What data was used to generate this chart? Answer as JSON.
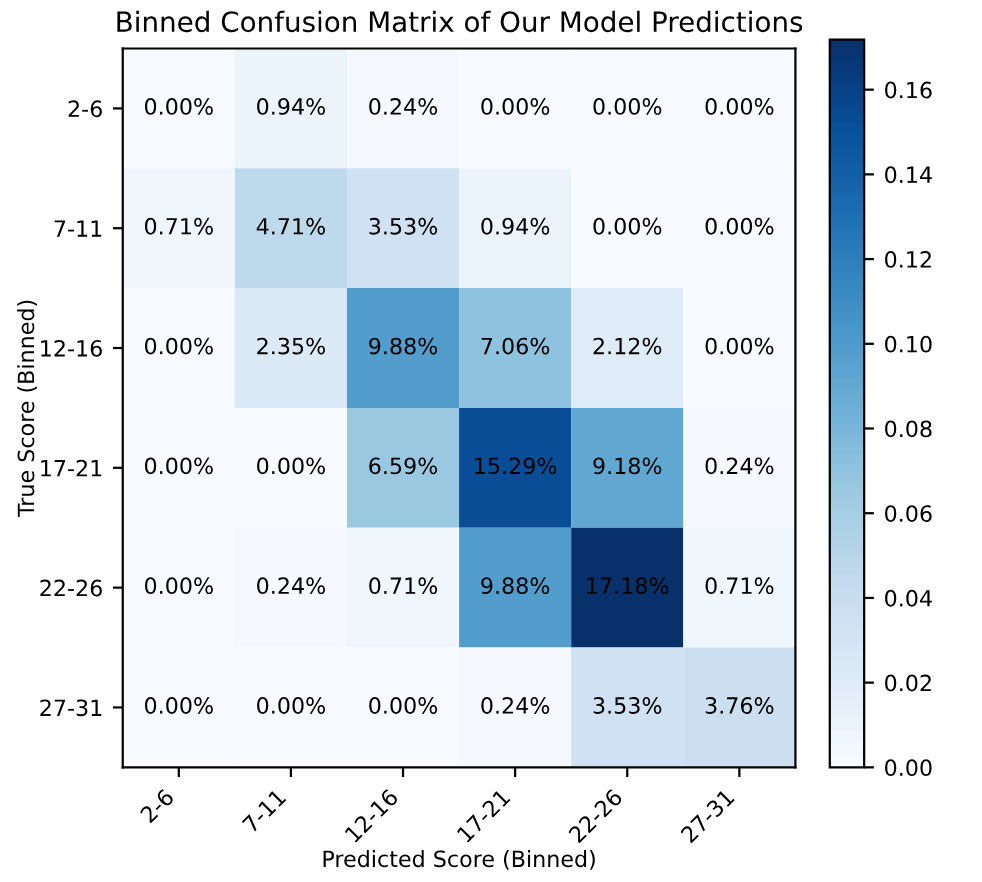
{
  "chart_data": {
    "type": "heatmap",
    "title": "Binned Confusion Matrix of Our Model Predictions",
    "xlabel": "Predicted Score (Binned)",
    "ylabel": "True Score (Binned)",
    "categories": [
      "2-6",
      "7-11",
      "12-16",
      "17-21",
      "22-26",
      "27-31"
    ],
    "y_categories": [
      "2-6",
      "7-11",
      "12-16",
      "17-21",
      "22-26",
      "27-31"
    ],
    "cells": [
      [
        0.0,
        0.0094,
        0.0024,
        0.0,
        0.0,
        0.0
      ],
      [
        0.0071,
        0.0471,
        0.0353,
        0.0094,
        0.0,
        0.0
      ],
      [
        0.0,
        0.0235,
        0.0988,
        0.0706,
        0.0212,
        0.0
      ],
      [
        0.0,
        0.0,
        0.0659,
        0.1529,
        0.0918,
        0.0024
      ],
      [
        0.0,
        0.0024,
        0.0071,
        0.0988,
        0.1718,
        0.0071
      ],
      [
        0.0,
        0.0,
        0.0,
        0.0024,
        0.0353,
        0.0376
      ]
    ],
    "cell_labels": [
      [
        "0.00%",
        "0.94%",
        "0.24%",
        "0.00%",
        "0.00%",
        "0.00%"
      ],
      [
        "0.71%",
        "4.71%",
        "3.53%",
        "0.94%",
        "0.00%",
        "0.00%"
      ],
      [
        "0.00%",
        "2.35%",
        "9.88%",
        "7.06%",
        "2.12%",
        "0.00%"
      ],
      [
        "0.00%",
        "0.00%",
        "6.59%",
        "15.29%",
        "9.18%",
        "0.24%"
      ],
      [
        "0.00%",
        "0.24%",
        "0.71%",
        "9.88%",
        "17.18%",
        "0.71%"
      ],
      [
        "0.00%",
        "0.00%",
        "0.00%",
        "0.24%",
        "3.53%",
        "3.76%"
      ]
    ],
    "clim": [
      0,
      0.1718
    ],
    "cticks": [
      {
        "value": 0,
        "label": "0.00"
      },
      {
        "value": 0.02,
        "label": "0.02"
      },
      {
        "value": 0.04,
        "label": "0.04"
      },
      {
        "value": 0.06,
        "label": "0.06"
      },
      {
        "value": 0.08,
        "label": "0.08"
      },
      {
        "value": 0.1,
        "label": "0.10"
      },
      {
        "value": 0.12,
        "label": "0.12"
      },
      {
        "value": 0.14,
        "label": "0.14"
      },
      {
        "value": 0.16,
        "label": "0.16"
      }
    ]
  }
}
